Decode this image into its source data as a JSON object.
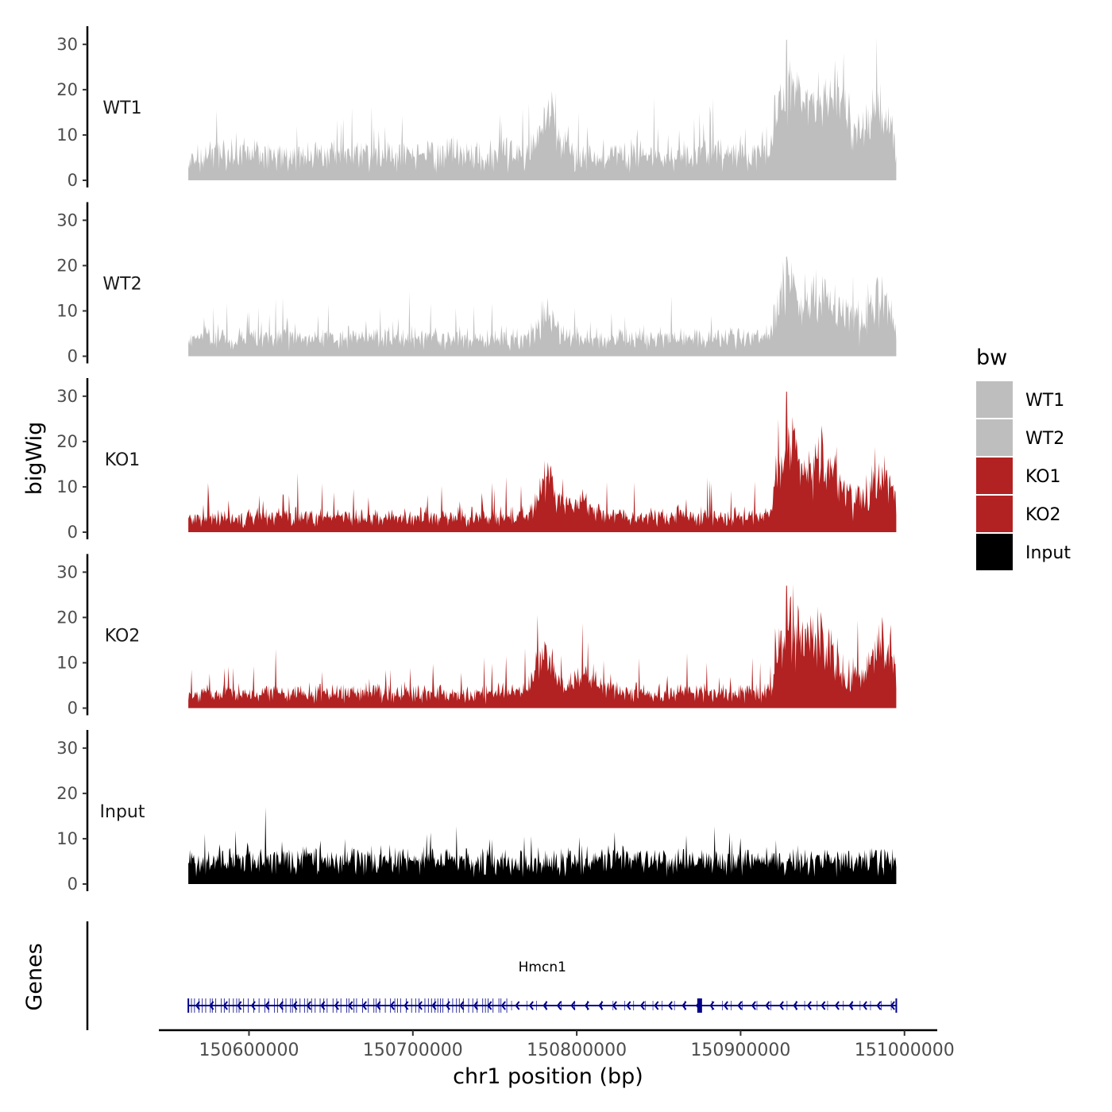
{
  "chart_data": {
    "type": "area",
    "title": "",
    "xlabel": "chr1 position (bp)",
    "ylabel": "bigWig",
    "genes_label": "Genes",
    "xlim": [
      150545000,
      151020000
    ],
    "data_range": [
      150563000,
      150995000
    ],
    "ylim": [
      0,
      34
    ],
    "x_ticks": [
      {
        "value": 150600000,
        "label": "150600000"
      },
      {
        "value": 150700000,
        "label": "150700000"
      },
      {
        "value": 150800000,
        "label": "150800000"
      },
      {
        "value": 150900000,
        "label": "150900000"
      },
      {
        "value": 151000000,
        "label": "151000000"
      }
    ],
    "y_ticks": [
      {
        "value": 0,
        "label": "0"
      },
      {
        "value": 10,
        "label": "10"
      },
      {
        "value": 20,
        "label": "20"
      },
      {
        "value": 30,
        "label": "30"
      }
    ],
    "legend": {
      "title": "bw",
      "entries": [
        {
          "label": "WT1",
          "color": "#bebebe"
        },
        {
          "label": "WT2",
          "color": "#bebebe"
        },
        {
          "label": "KO1",
          "color": "#b22222"
        },
        {
          "label": "KO2",
          "color": "#b22222"
        },
        {
          "label": "Input",
          "color": "#000000"
        }
      ]
    },
    "series": [
      {
        "name": "WT1",
        "color": "#bebebe",
        "base": 5,
        "noise": 4,
        "spike": 11,
        "seed": 11,
        "peaks": [
          [
            150783000,
            8000,
            10
          ],
          [
            150930000,
            8000,
            14
          ],
          [
            150950000,
            12000,
            9
          ],
          [
            150985000,
            6000,
            8
          ],
          [
            150960000,
            6000,
            6
          ]
        ],
        "max_peak": [
          150928000,
          31
        ]
      },
      {
        "name": "WT2",
        "color": "#bebebe",
        "base": 3.5,
        "noise": 3,
        "spike": 9,
        "seed": 23,
        "peaks": [
          [
            150782000,
            6000,
            7
          ],
          [
            150928000,
            7000,
            10
          ],
          [
            150950000,
            12000,
            7
          ],
          [
            150985000,
            6000,
            6
          ]
        ],
        "max_peak": [
          150928000,
          22
        ]
      },
      {
        "name": "KO1",
        "color": "#b22222",
        "base": 3,
        "noise": 2.5,
        "spike": 9,
        "seed": 37,
        "peaks": [
          [
            150782000,
            7000,
            10
          ],
          [
            150930000,
            8000,
            14
          ],
          [
            150950000,
            10000,
            10
          ],
          [
            150985000,
            6000,
            7
          ],
          [
            150800000,
            10000,
            4
          ]
        ],
        "max_peak": [
          150928000,
          31
        ]
      },
      {
        "name": "KO2",
        "color": "#b22222",
        "base": 3,
        "noise": 2.5,
        "spike": 10,
        "seed": 53,
        "peaks": [
          [
            150780000,
            8000,
            9
          ],
          [
            150930000,
            8000,
            13
          ],
          [
            150948000,
            10000,
            10
          ],
          [
            150985000,
            6000,
            9
          ],
          [
            150805000,
            12000,
            5
          ]
        ],
        "max_peak": [
          150928000,
          27
        ]
      },
      {
        "name": "Input",
        "color": "#000000",
        "base": 5,
        "noise": 3,
        "spike": 7,
        "seed": 71,
        "peaks": [],
        "max_peak": [
          150610000,
          17
        ]
      }
    ],
    "genes": [
      {
        "name": "Hmcn1",
        "start": 150563000,
        "end": 150995000,
        "strand": "-",
        "color": "#00008b"
      }
    ]
  }
}
